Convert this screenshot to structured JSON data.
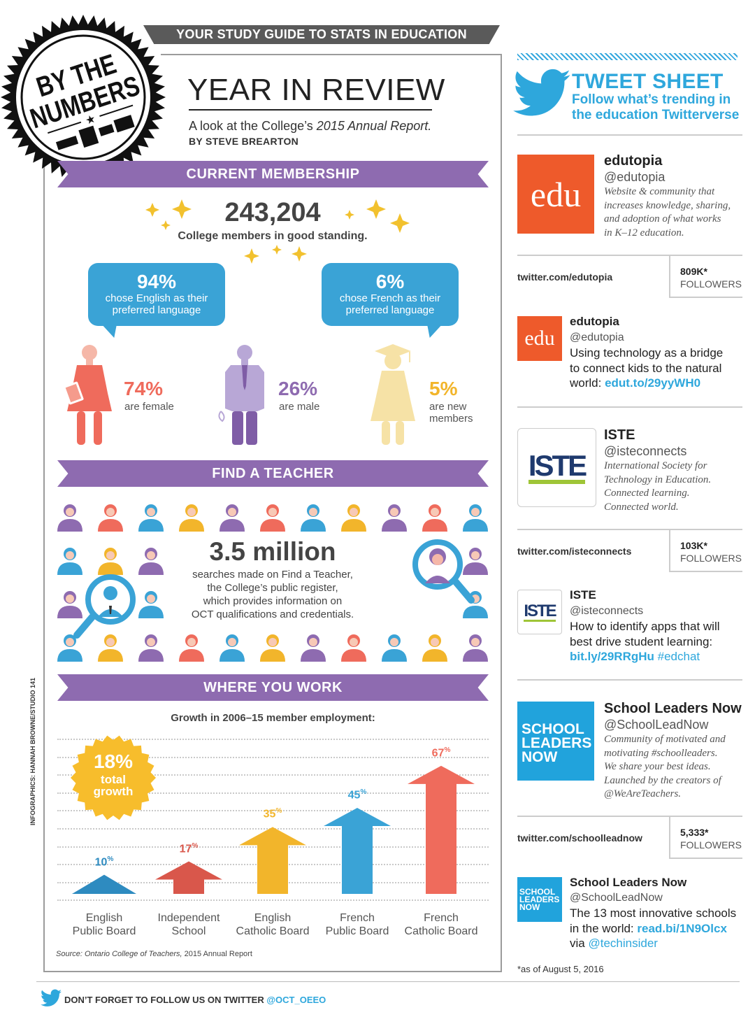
{
  "header": {
    "badge_line1": "BY THE",
    "badge_line2": "NUMBERS",
    "banner": "YOUR STUDY GUIDE TO STATS IN EDUCATION",
    "title": "YEAR IN REVIEW",
    "subtitle_prefix": "A look at the College’s ",
    "subtitle_italic": "2015 Annual Report.",
    "byline": "BY STEVE BREARTON"
  },
  "membership": {
    "heading": "CURRENT MEMBERSHIP",
    "total": "243,204",
    "total_caption": "College members in good standing.",
    "english": {
      "pct": "94%",
      "line1": "chose English as their",
      "line2": "preferred language"
    },
    "french": {
      "pct": "6%",
      "line1": "chose French as their",
      "line2": "preferred language"
    },
    "female": {
      "pct": "74%",
      "label": "are female"
    },
    "male": {
      "pct": "26%",
      "label": "are male"
    },
    "new": {
      "pct": "5%",
      "label1": "are new",
      "label2": "members"
    }
  },
  "find_teacher": {
    "heading": "FIND A TEACHER",
    "number": "3.5 million",
    "caption1": "searches made on Find a Teacher,",
    "caption2": "the College’s public register,",
    "caption3": "which provides information on",
    "caption4": "OCT qualifications and credentials."
  },
  "where_you_work": {
    "heading": "WHERE YOU WORK",
    "caption": "Growth in 2006–15 member employment:",
    "total_pct": "18%",
    "total_line1": "total",
    "total_line2": "growth",
    "source_italic": "Source: Ontario College of Teachers,",
    "source_rest": " 2015 Annual Report",
    "credit": "INFOGRAPHICS: HANNAH BROWNE/STUDIO 141"
  },
  "chart_data": {
    "type": "bar",
    "title": "Growth in 2006–15 member employment:",
    "categories": [
      [
        "English",
        "Public Board"
      ],
      [
        "Independent",
        "School"
      ],
      [
        "English",
        "Catholic Board"
      ],
      [
        "French",
        "Public Board"
      ],
      [
        "French",
        "Catholic Board"
      ]
    ],
    "values": [
      10,
      17,
      35,
      45,
      67
    ],
    "value_labels": [
      "10",
      "17",
      "35",
      "45",
      "67"
    ],
    "unit": "%",
    "colors": [
      "#2e8bc0",
      "#d9574b",
      "#f2b52b",
      "#3aa3d6",
      "#ef6b5c"
    ],
    "ylim": [
      0,
      75
    ],
    "grid": true
  },
  "tweet_sheet": {
    "title": "TWEET SHEET",
    "sub1": "Follow what’s trending in",
    "sub2": "the education Twitterverse",
    "accounts": [
      {
        "logo_text": "edu",
        "name": "edutopia",
        "handle": "@edutopia",
        "desc": [
          "Website & community that",
          "increases knowledge, sharing,",
          "and adoption of what works",
          "in K–12 education."
        ],
        "url": "twitter.com/edutopia",
        "followers": "809K*",
        "followers_label": "FOLLOWERS",
        "tweet_name": "edutopia",
        "tweet_handle": "@edutopia",
        "tweet_lines": [
          "Using technology as a bridge",
          "to connect kids to the natural",
          "world: "
        ],
        "tweet_link": "edut.to/29yyWH0"
      },
      {
        "logo_text": "ISTE",
        "name": "ISTE",
        "handle": "@isteconnects",
        "desc": [
          "International Society for",
          "Technology in Education.",
          "Connected learning.",
          "Connected world."
        ],
        "url": "twitter.com/isteconnects",
        "followers": "103K*",
        "followers_label": "FOLLOWERS",
        "tweet_name": "ISTE",
        "tweet_handle": "@isteconnects",
        "tweet_lines": [
          "How to identify apps that will",
          "best drive student learning:"
        ],
        "tweet_link": "bit.ly/29RRgHu",
        "tweet_hashtag": " #edchat"
      },
      {
        "logo_lines": [
          "SCHOOL",
          "LEADERS",
          "NOW"
        ],
        "name": "School Leaders Now",
        "handle": "@SchoolLeadNow",
        "desc": [
          "Community of motivated and",
          "motivating #schoolleaders.",
          "We share your best ideas.",
          "Launched by the creators of",
          "@WeAreTeachers."
        ],
        "url": "twitter.com/schoolleadnow",
        "followers": "5,333*",
        "followers_label": "FOLLOWERS",
        "tweet_name": "School Leaders Now",
        "tweet_handle": "@SchoolLeadNow",
        "tweet_lines": [
          "The 13 most innovative schools",
          "in the world: "
        ],
        "tweet_link": "read.bi/1N9Olcx",
        "tweet_via": "via ",
        "tweet_via_link": "@techinsider"
      }
    ],
    "as_of": "*as of August 5, 2016"
  },
  "footer": {
    "text": "DON’T FORGET TO FOLLOW US ON TWITTER ",
    "handle": "@OCT_OEEO"
  },
  "colors": {
    "purple": "#8e6bb0",
    "blue": "#3aa3d6",
    "red": "#ef6b5c",
    "yellow": "#f2b52b",
    "twitter": "#2ea7dc"
  }
}
